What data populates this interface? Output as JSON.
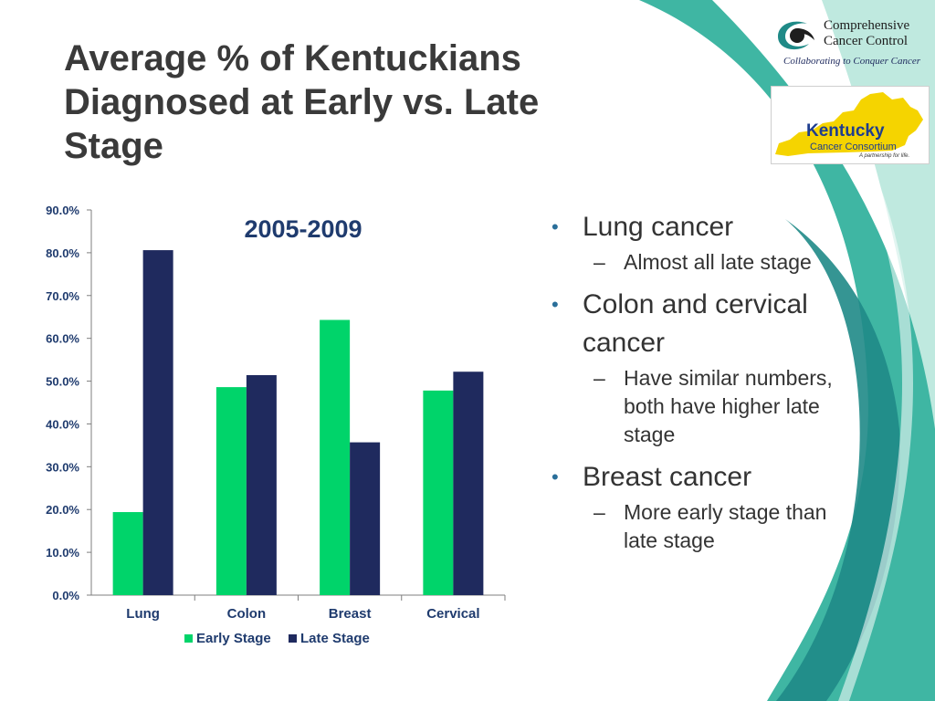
{
  "slide": {
    "title_lines": [
      "Average % of Kentuckians",
      "Diagnosed at Early vs. Late",
      "Stage"
    ]
  },
  "logos": {
    "ccc": {
      "name_line1": "Comprehensive",
      "name_line2": "Cancer Control",
      "tagline": "Collaborating to Conquer Cancer"
    },
    "kentucky": {
      "name": "Kentucky",
      "subtitle": "Cancer Consortium",
      "tagline": "A partnership for life."
    }
  },
  "bullets": [
    {
      "text": "Lung cancer",
      "sub": [
        "Almost all late stage"
      ]
    },
    {
      "text": "Colon and cervical cancer",
      "sub": [
        "Have similar numbers, both have higher late stage"
      ]
    },
    {
      "text": "Breast cancer",
      "sub": [
        "More early stage than late stage"
      ]
    }
  ],
  "chart_data": {
    "type": "bar",
    "title": "2005-2009",
    "categories": [
      "Lung",
      "Colon",
      "Breast",
      "Cervical"
    ],
    "series": [
      {
        "name": "Early Stage",
        "values": [
          19.4,
          48.6,
          64.3,
          47.8
        ],
        "color": "#00d46a"
      },
      {
        "name": "Late Stage",
        "values": [
          80.6,
          51.4,
          35.7,
          52.2
        ],
        "color": "#1f2a5e"
      }
    ],
    "ylim": [
      0,
      90
    ],
    "yticks": [
      "0.0%",
      "10.0%",
      "20.0%",
      "30.0%",
      "40.0%",
      "50.0%",
      "60.0%",
      "70.0%",
      "80.0%",
      "90.0%"
    ],
    "xlabel": "",
    "ylabel": "",
    "legend_position": "bottom",
    "grid": false
  },
  "colors": {
    "title": "#3a3a3a",
    "axis_text": "#1f3b6e",
    "chart_title": "#1f3b6e",
    "wave_dark": "#1f8a87",
    "wave_mid": "#3fb6a3",
    "wave_light": "#bfe9df"
  }
}
